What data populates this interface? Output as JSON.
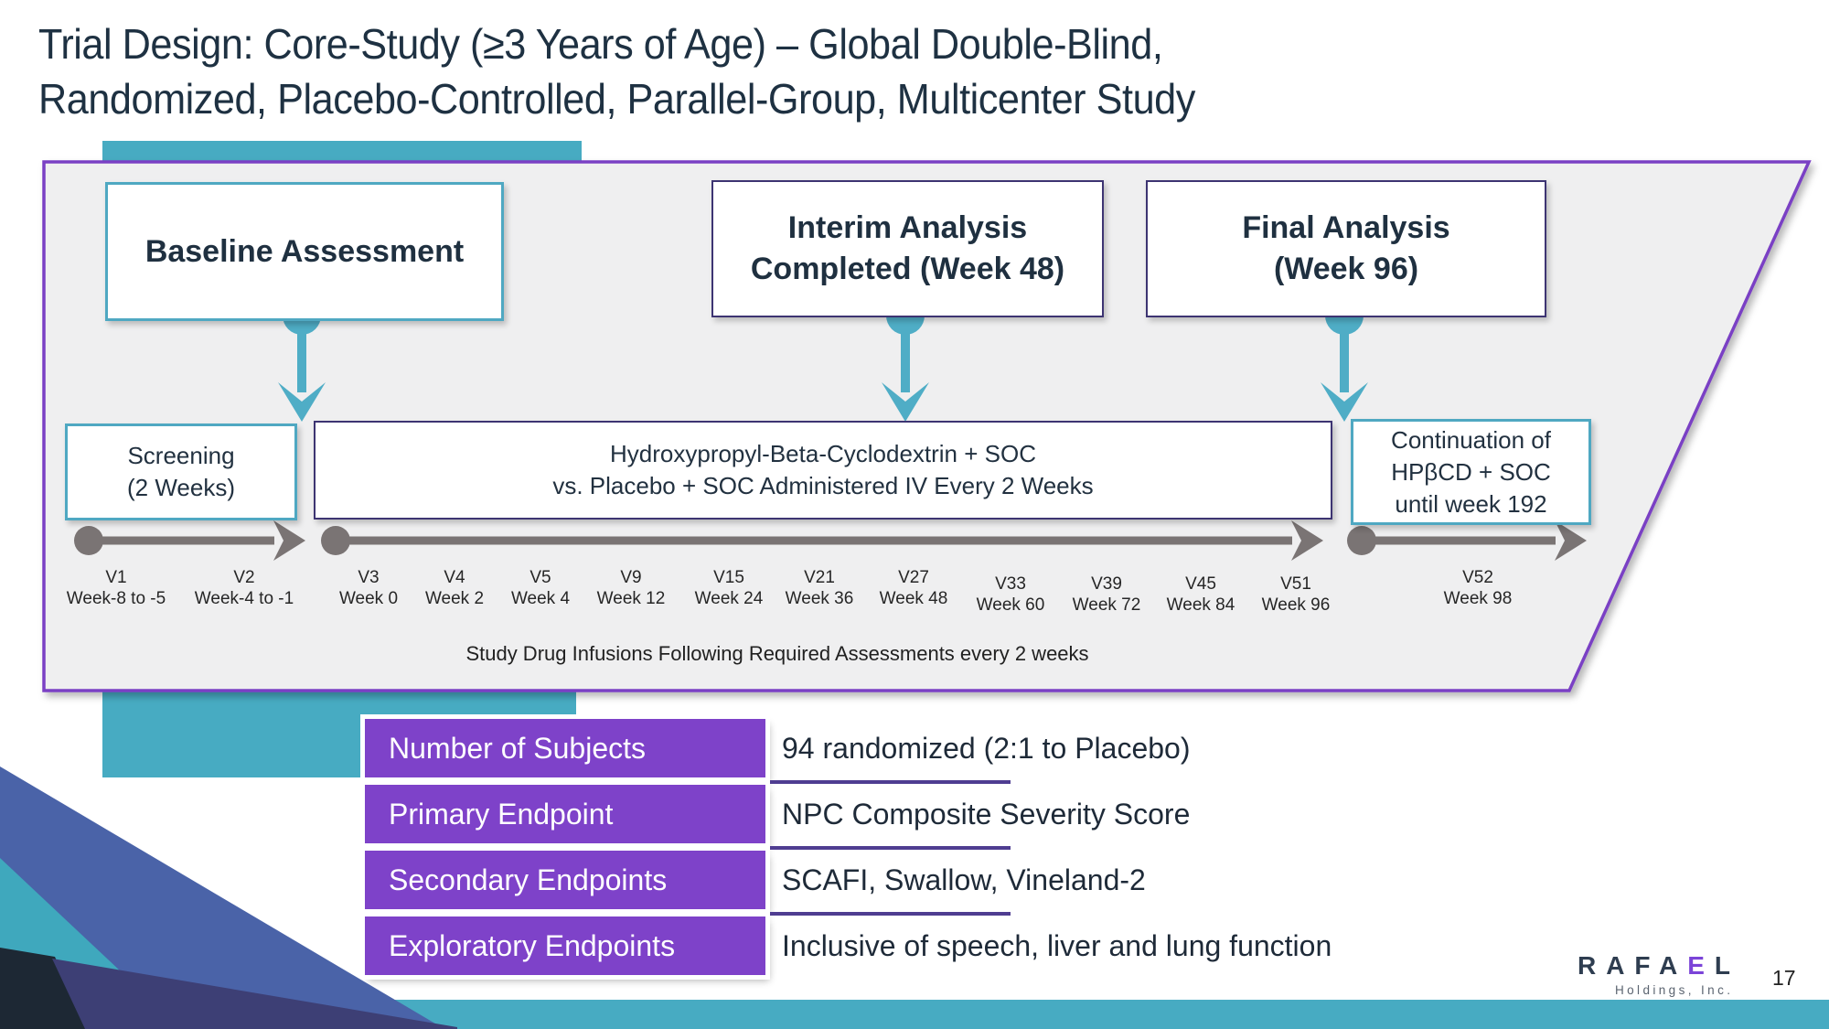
{
  "slide": {
    "title_line1": "Trial Design: Core-Study (≥3 Years of Age) – Global Double-Blind,",
    "title_line2": "Randomized, Placebo-Controlled, Parallel-Group, Multicenter Study",
    "page_number": "17"
  },
  "colors": {
    "accent_teal": "#47abc2",
    "panel_border_purple": "#7a3fc4",
    "panel_fill": "#efeff0",
    "dark_box_border": "#3d3472",
    "teal_box_border": "#4fa8c2",
    "connector_teal": "#4fadc6",
    "timeline_gray": "#7a7474",
    "table_purple": "#7e42c9",
    "table_underline_purple": "#4f3d91",
    "title_text": "#1e3142",
    "corner_blue": "#4a63a8",
    "corner_teal": "#3fa8bd",
    "corner_navy": "#1d2834",
    "corner_indigo": "#3d3f75"
  },
  "diagram": {
    "baseline_box": "Baseline Assessment",
    "interim_box_line1": "Interim Analysis",
    "interim_box_line2": "Completed (Week 48)",
    "final_box_line1": "Final Analysis",
    "final_box_line2": "(Week 96)",
    "screening_line1": "Screening",
    "screening_line2": "(2 Weeks)",
    "drug_line1": "Hydroxypropyl-Beta-Cyclodextrin + SOC",
    "drug_line2": "vs. Placebo + SOC Administered IV Every 2 Weeks",
    "continuation_line1": "Continuation of",
    "continuation_line2": "HPβCD + SOC",
    "continuation_line3": "until week 192",
    "infusion_note": "Study Drug Infusions Following Required Assessments every 2 weeks",
    "visits": [
      {
        "name": "V1",
        "week": "Week-8 to -5"
      },
      {
        "name": "V2",
        "week": "Week-4 to -1"
      },
      {
        "name": "V3",
        "week": "Week 0"
      },
      {
        "name": "V4",
        "week": "Week 2"
      },
      {
        "name": "V5",
        "week": "Week 4"
      },
      {
        "name": "V9",
        "week": "Week 12"
      },
      {
        "name": "V15",
        "week": "Week 24"
      },
      {
        "name": "V21",
        "week": "Week 36"
      },
      {
        "name": "V27",
        "week": "Week 48"
      },
      {
        "name": "V33",
        "week": "Week 60"
      },
      {
        "name": "V39",
        "week": "Week 72"
      },
      {
        "name": "V45",
        "week": "Week 84"
      },
      {
        "name": "V51",
        "week": "Week 96"
      },
      {
        "name": "V52",
        "week": "Week 98"
      }
    ]
  },
  "table": {
    "rows": [
      {
        "label": "Number of Subjects",
        "value": "94 randomized (2:1 to Placebo)"
      },
      {
        "label": "Primary Endpoint",
        "value": "NPC Composite Severity Score"
      },
      {
        "label": "Secondary Endpoints",
        "value": "SCAFI, Swallow, Vineland-2"
      },
      {
        "label": "Exploratory Endpoints",
        "value": "Inclusive of speech, liver and lung function"
      }
    ]
  },
  "logo": {
    "brand_prefix": "RAFA",
    "brand_e": "E",
    "brand_suffix": "L",
    "subtitle": "Holdings, Inc."
  }
}
